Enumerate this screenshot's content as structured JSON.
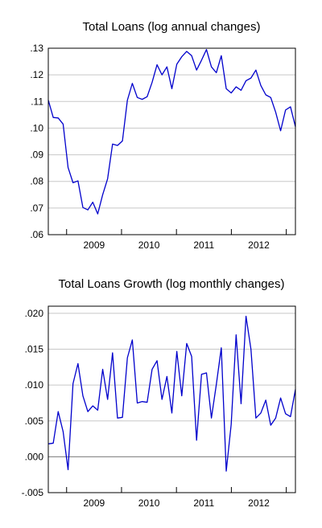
{
  "chart_data": [
    {
      "type": "line",
      "title": "Total Loans (log annual changes)",
      "xlabel": "",
      "ylabel": "",
      "x_start": "2008-09",
      "x_end": "2013-03",
      "x_ticks": [
        "2009",
        "2010",
        "2011",
        "2012"
      ],
      "y_ticks": [
        ".06",
        ".07",
        ".08",
        ".09",
        ".10",
        ".11",
        ".12",
        ".13"
      ],
      "ylim": [
        0.06,
        0.13
      ],
      "grid": true,
      "zero_line": false,
      "color": "#0000cc",
      "series": [
        {
          "values": [
            0.1105,
            0.104,
            0.1038,
            0.1015,
            0.0852,
            0.0795,
            0.0802,
            0.0702,
            0.0693,
            0.0722,
            0.0678,
            0.075,
            0.081,
            0.094,
            0.0935,
            0.0952,
            0.1105,
            0.1168,
            0.1115,
            0.1108,
            0.1118,
            0.1172,
            0.1238,
            0.12,
            0.123,
            0.1148,
            0.124,
            0.1268,
            0.1288,
            0.1272,
            0.1218,
            0.1255,
            0.1295,
            0.123,
            0.1208,
            0.1272,
            0.1148,
            0.1132,
            0.1155,
            0.1142,
            0.1178,
            0.1188,
            0.1218,
            0.116,
            0.1125,
            0.1115,
            0.106,
            0.099,
            0.1068,
            0.108,
            0.1005
          ]
        }
      ]
    },
    {
      "type": "line",
      "title": "Total Loans Growth (log monthly changes)",
      "xlabel": "",
      "ylabel": "",
      "x_start": "2008-09",
      "x_end": "2013-03",
      "x_ticks": [
        "2009",
        "2010",
        "2011",
        "2012"
      ],
      "y_ticks": [
        "-.005",
        ".000",
        ".005",
        ".010",
        ".015",
        ".020"
      ],
      "ylim": [
        -0.005,
        0.021
      ],
      "grid": true,
      "zero_line": true,
      "color": "#0000cc",
      "series": [
        {
          "values": [
            0.0018,
            0.0019,
            0.0063,
            0.0035,
            -0.0018,
            0.0102,
            0.013,
            0.0085,
            0.0063,
            0.0071,
            0.0065,
            0.0122,
            0.008,
            0.0145,
            0.0054,
            0.0055,
            0.0138,
            0.0163,
            0.0075,
            0.0077,
            0.0076,
            0.0122,
            0.0134,
            0.008,
            0.0112,
            0.0061,
            0.0147,
            0.0085,
            0.0158,
            0.014,
            0.0023,
            0.0115,
            0.0117,
            0.0054,
            0.0101,
            0.0152,
            -0.002,
            0.0045,
            0.017,
            0.0074,
            0.0196,
            0.015,
            0.0054,
            0.0061,
            0.0079,
            0.0044,
            0.0054,
            0.0082,
            0.006,
            0.0056,
            0.0094
          ]
        }
      ]
    }
  ]
}
